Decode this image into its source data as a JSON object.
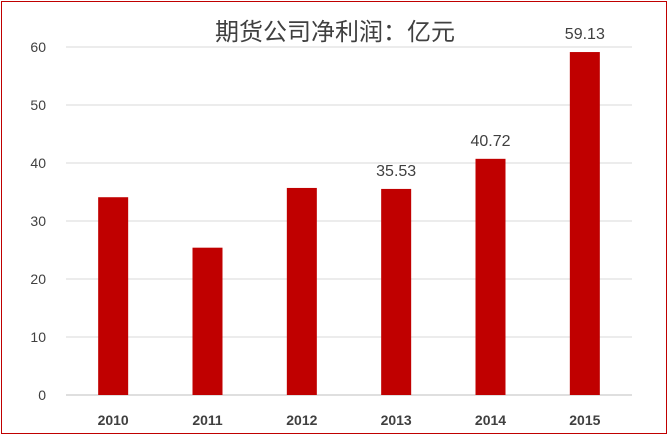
{
  "chart_data": {
    "type": "bar",
    "title": "期货公司净利润：亿元",
    "categories": [
      "2010",
      "2011",
      "2012",
      "2013",
      "2014",
      "2015"
    ],
    "values": [
      34.1,
      25.4,
      35.7,
      35.53,
      40.72,
      59.13
    ],
    "data_labels": [
      "",
      "",
      "",
      "35.53",
      "40.72",
      "59.13"
    ],
    "xlabel": "",
    "ylabel": "",
    "ylim": [
      0,
      60
    ],
    "yticks": [
      0,
      10,
      20,
      30,
      40,
      50,
      60
    ],
    "grid": true,
    "legend": "none",
    "bar_color": "#c00000",
    "border_color": "#c00000"
  }
}
